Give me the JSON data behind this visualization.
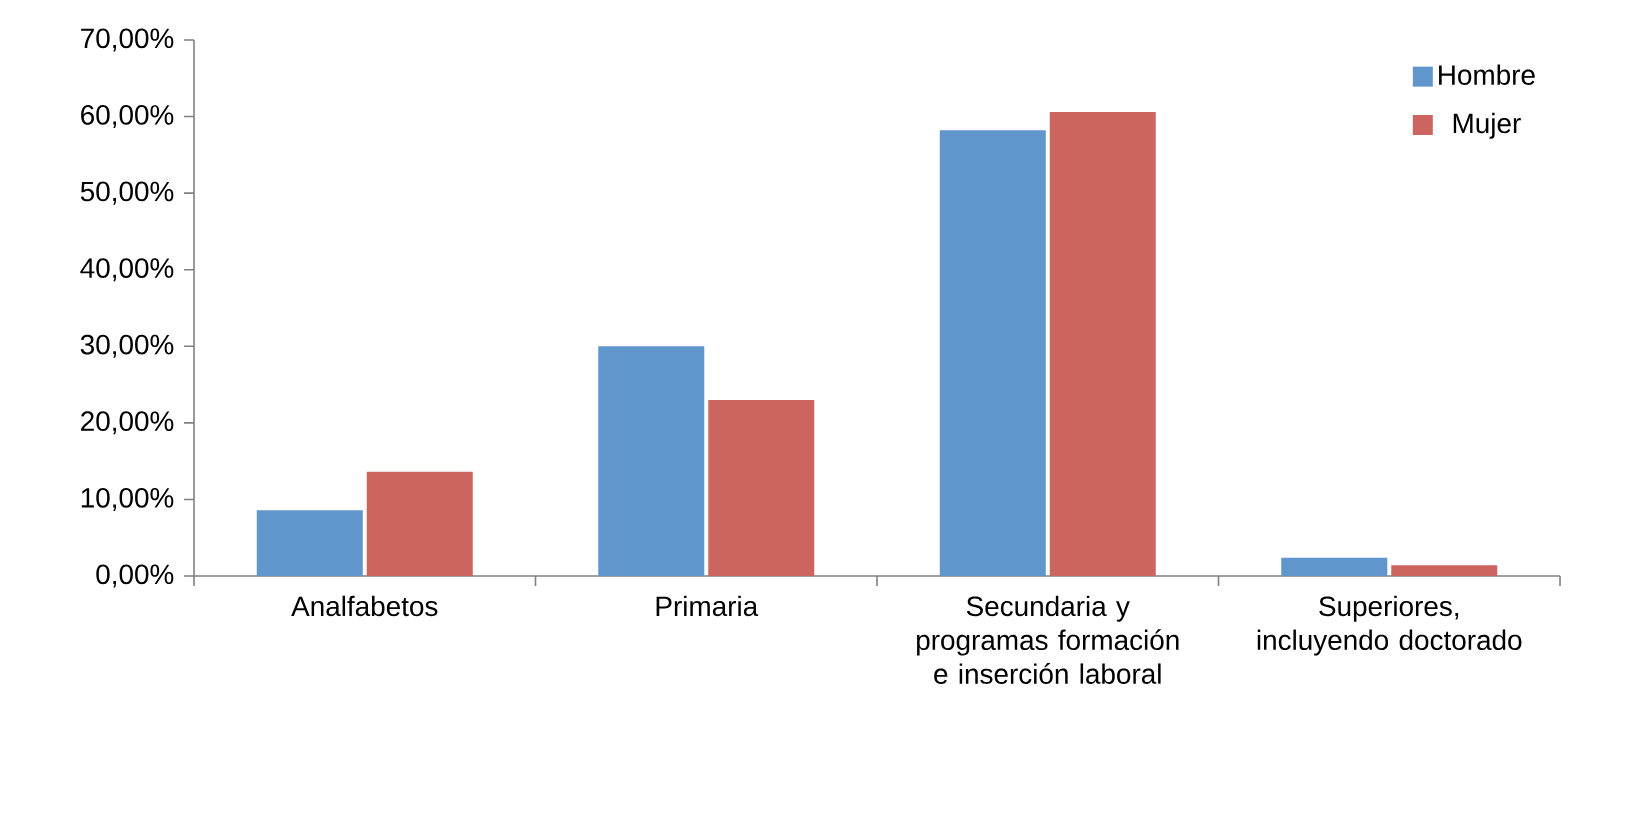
{
  "chart_data": {
    "type": "bar",
    "categories": [
      "Analfabetos",
      "Primaria",
      "Secundaria y programas formación e inserción laboral",
      "Superiores, incluyendo doctorado"
    ],
    "series": [
      {
        "name": "Hombre",
        "color": "#6096cc",
        "values": [
          8.6,
          30.0,
          58.2,
          2.4
        ]
      },
      {
        "name": "Mujer",
        "color": "#cc6560",
        "values": [
          13.6,
          23.0,
          60.6,
          1.4
        ]
      }
    ],
    "ylim": [
      0,
      70
    ],
    "yticks": [
      {
        "value": 0,
        "label": "0,00%"
      },
      {
        "value": 10,
        "label": "10,00%"
      },
      {
        "value": 20,
        "label": "20,00%"
      },
      {
        "value": 30,
        "label": "30,00%"
      },
      {
        "value": 40,
        "label": "40,00%"
      },
      {
        "value": 50,
        "label": "50,00%"
      },
      {
        "value": 60,
        "label": "60,00%"
      },
      {
        "value": 70,
        "label": "70,00%"
      }
    ],
    "grid": false,
    "legend": "top right"
  }
}
